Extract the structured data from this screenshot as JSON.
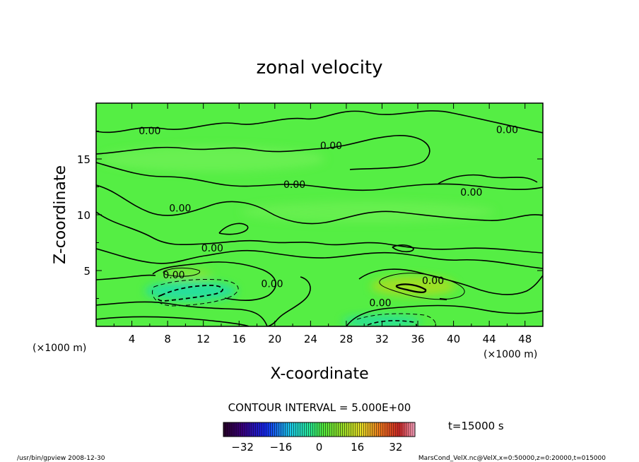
{
  "chart_data": {
    "type": "heatmap",
    "title": "zonal velocity",
    "xlabel": "X-coordinate",
    "ylabel": "Z-coordinate",
    "x_unit": "(×1000 m)",
    "y_unit": "(×1000 m)",
    "xlim": [
      0,
      50
    ],
    "ylim": [
      0,
      20
    ],
    "x_ticks": [
      4,
      8,
      12,
      16,
      20,
      24,
      28,
      32,
      36,
      40,
      44,
      48
    ],
    "y_ticks": [
      5,
      10,
      15
    ],
    "contour_interval": "CONTOUR INTERVAL = 5.000E+00",
    "contour_label_value": "0.00",
    "contour_labels": [
      {
        "x": 6.0,
        "y": 17.2
      },
      {
        "x": 26.3,
        "y": 15.9
      },
      {
        "x": 46.0,
        "y": 17.3
      },
      {
        "x": 22.2,
        "y": 12.4
      },
      {
        "x": 42.0,
        "y": 11.7
      },
      {
        "x": 9.4,
        "y": 10.3
      },
      {
        "x": 13.0,
        "y": 6.7
      },
      {
        "x": 8.7,
        "y": 4.3
      },
      {
        "x": 19.7,
        "y": 3.5
      },
      {
        "x": 37.7,
        "y": 3.8
      },
      {
        "x": 31.8,
        "y": 1.8
      }
    ],
    "colorbar": {
      "min": -40,
      "max": 40,
      "ticks": [
        -32,
        -16,
        0,
        16,
        32
      ],
      "tick_labels": [
        "−32",
        "−16",
        "0",
        "16",
        "32"
      ]
    },
    "time_label": "t=15000 s"
  },
  "footer": {
    "left": "/usr/bin/gpview  2008-12-30",
    "right": "MarsCond_VelX.nc@VelX,x=0:50000,z=0:20000,t=015000"
  },
  "colors": {
    "field_base": "#55ee44",
    "negative_pool": "#22ddaa",
    "positive_pool": "#aadd22"
  }
}
